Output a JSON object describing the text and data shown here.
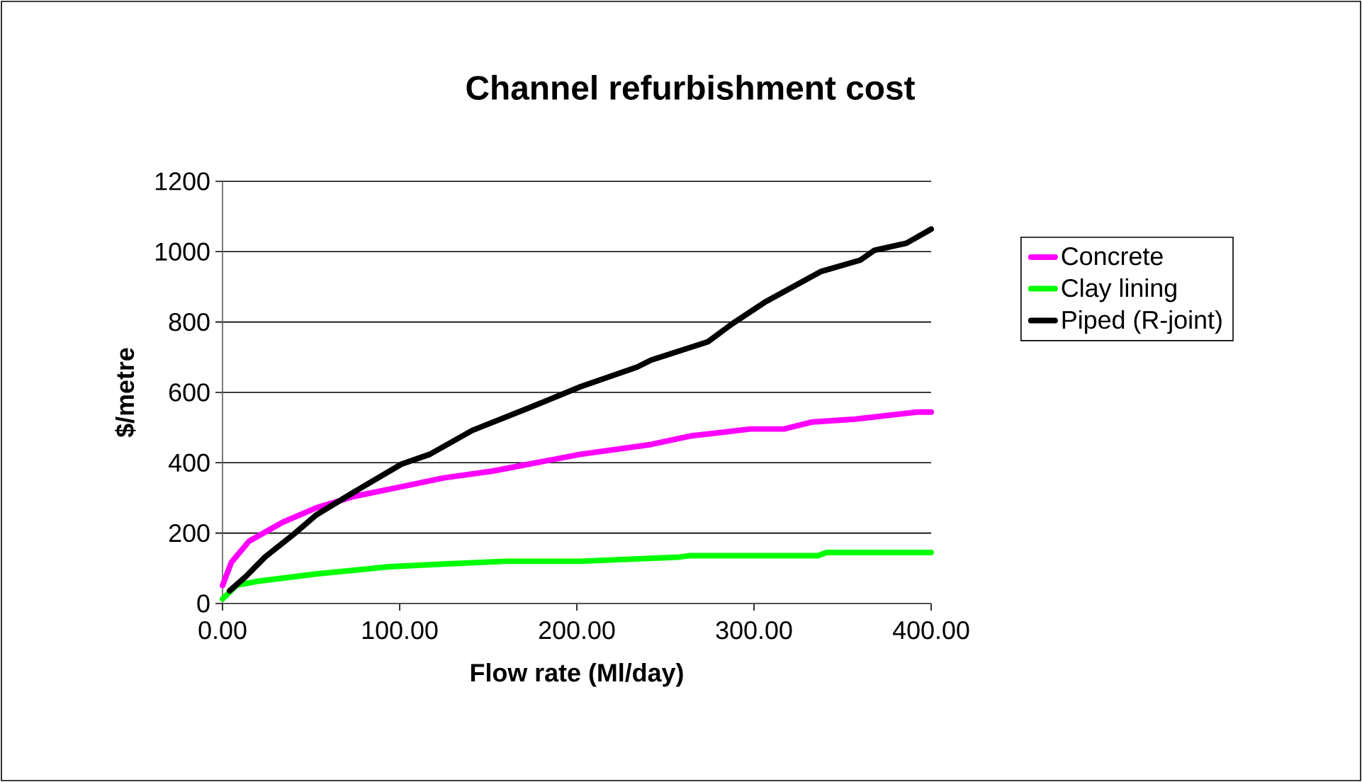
{
  "chart_data": {
    "type": "line",
    "title": "Channel refurbishment cost",
    "xlabel": "Flow rate (Ml/day)",
    "ylabel": "$/metre",
    "xlim": [
      0,
      400
    ],
    "ylim": [
      0,
      1200
    ],
    "xticks": [
      {
        "value": 0,
        "label": "0.00"
      },
      {
        "value": 100,
        "label": "100.00"
      },
      {
        "value": 200,
        "label": "200.00"
      },
      {
        "value": 300,
        "label": "300.00"
      },
      {
        "value": 400,
        "label": "400.00"
      }
    ],
    "yticks": [
      0,
      200,
      400,
      600,
      800,
      1000,
      1200
    ],
    "grid": "y",
    "legend": "right",
    "marker": "none",
    "line_style": "solid",
    "series": [
      {
        "name": "Concrete",
        "color": "#ff00ff",
        "x": [
          0,
          5,
          15,
          34,
          53,
          74,
          101,
          125,
          152,
          202,
          242,
          264,
          298,
          317,
          333,
          357,
          392,
          400
        ],
        "values": [
          51,
          117,
          177,
          231,
          272,
          304,
          332,
          357,
          376,
          424,
          452,
          476,
          496,
          496,
          516,
          524,
          544,
          544
        ]
      },
      {
        "name": "Clay lining",
        "color": "#00ff00",
        "x": [
          0,
          8,
          21,
          53,
          93,
          125,
          160,
          202,
          258,
          264,
          336,
          341,
          400
        ],
        "values": [
          13,
          52,
          64,
          84,
          104,
          112,
          120,
          120,
          132,
          136,
          136,
          145,
          145
        ]
      },
      {
        "name": "Piped (R-joint)",
        "color": "#000000",
        "x": [
          4,
          13,
          24,
          40,
          53,
          74,
          101,
          117,
          141,
          173,
          202,
          234,
          242,
          274,
          288,
          306,
          338,
          360,
          368,
          386,
          400
        ],
        "values": [
          36,
          76,
          132,
          196,
          252,
          316,
          396,
          424,
          492,
          556,
          616,
          672,
          692,
          744,
          796,
          856,
          944,
          976,
          1004,
          1024,
          1064
        ]
      }
    ]
  }
}
